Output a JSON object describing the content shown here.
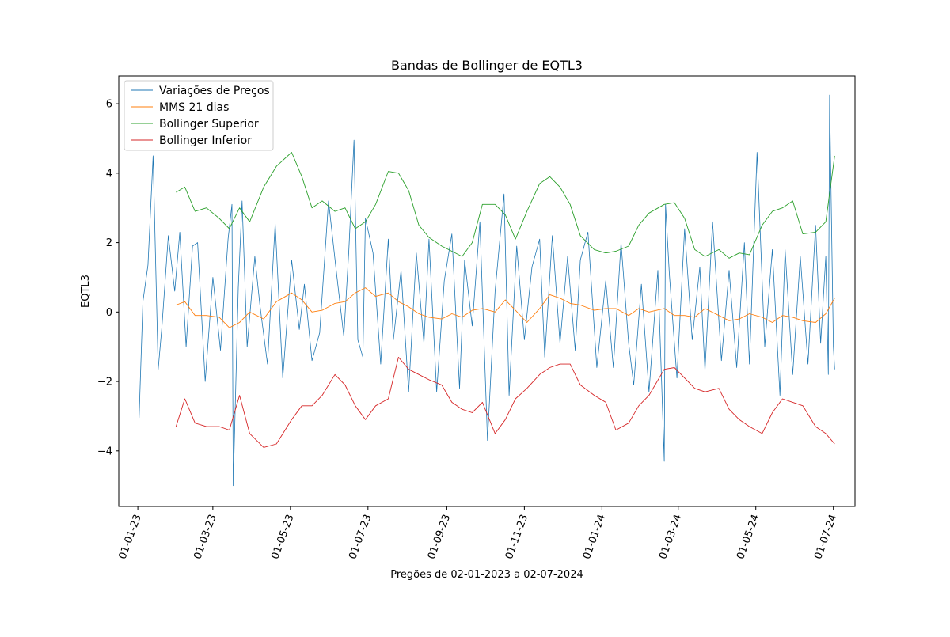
{
  "chart_data": {
    "type": "line",
    "title": "Bandas de Bollinger de EQTL3",
    "xlabel": "Pregões de 02-01-2023 a 02-07-2024",
    "ylabel": "EQTL3",
    "ylim": [
      -5.6,
      6.8
    ],
    "xlim": [
      "2022-12-17",
      "2024-07-18"
    ],
    "grid": false,
    "legend_position": "upper-left",
    "yticks": [
      -4,
      -2,
      0,
      2,
      4,
      6
    ],
    "ytick_labels": [
      "−4",
      "−2",
      "0",
      "2",
      "4",
      "6"
    ],
    "xticks": [
      "2023-01-01",
      "2023-03-01",
      "2023-05-01",
      "2023-07-01",
      "2023-09-01",
      "2023-11-01",
      "2024-01-01",
      "2024-03-01",
      "2024-05-01",
      "2024-07-01"
    ],
    "xtick_labels": [
      "01-01-23",
      "01-03-23",
      "01-05-23",
      "01-07-23",
      "01-09-23",
      "01-11-23",
      "01-01-24",
      "01-03-24",
      "01-05-24",
      "01-07-24"
    ],
    "series": [
      {
        "name": "Variações de Preços",
        "color": "#1f77b4",
        "x": [
          "2023-01-02",
          "2023-01-05",
          "2023-01-09",
          "2023-01-13",
          "2023-01-17",
          "2023-01-20",
          "2023-01-25",
          "2023-01-30",
          "2023-02-03",
          "2023-02-08",
          "2023-02-13",
          "2023-02-17",
          "2023-02-23",
          "2023-03-01",
          "2023-03-07",
          "2023-03-13",
          "2023-03-16",
          "2023-03-17",
          "2023-03-21",
          "2023-03-24",
          "2023-03-28",
          "2023-04-03",
          "2023-04-07",
          "2023-04-13",
          "2023-04-19",
          "2023-04-25",
          "2023-05-02",
          "2023-05-08",
          "2023-05-12",
          "2023-05-18",
          "2023-05-24",
          "2023-05-31",
          "2023-06-06",
          "2023-06-12",
          "2023-06-16",
          "2023-06-20",
          "2023-06-23",
          "2023-06-27",
          "2023-06-29",
          "2023-07-05",
          "2023-07-11",
          "2023-07-17",
          "2023-07-21",
          "2023-07-27",
          "2023-08-02",
          "2023-08-08",
          "2023-08-14",
          "2023-08-18",
          "2023-08-24",
          "2023-08-30",
          "2023-09-05",
          "2023-09-11",
          "2023-09-15",
          "2023-09-21",
          "2023-09-27",
          "2023-10-03",
          "2023-10-09",
          "2023-10-16",
          "2023-10-20",
          "2023-10-26",
          "2023-11-01",
          "2023-11-07",
          "2023-11-13",
          "2023-11-17",
          "2023-11-23",
          "2023-11-29",
          "2023-12-05",
          "2023-12-11",
          "2023-12-15",
          "2023-12-21",
          "2023-12-28",
          "2024-01-04",
          "2024-01-10",
          "2024-01-16",
          "2024-01-22",
          "2024-01-26",
          "2024-02-01",
          "2024-02-07",
          "2024-02-14",
          "2024-02-19",
          "2024-02-20",
          "2024-02-23",
          "2024-02-29",
          "2024-03-06",
          "2024-03-12",
          "2024-03-18",
          "2024-03-22",
          "2024-03-28",
          "2024-04-04",
          "2024-04-10",
          "2024-04-16",
          "2024-04-22",
          "2024-04-26",
          "2024-05-02",
          "2024-05-08",
          "2024-05-14",
          "2024-05-20",
          "2024-05-24",
          "2024-05-30",
          "2024-06-05",
          "2024-06-11",
          "2024-06-17",
          "2024-06-21",
          "2024-06-25",
          "2024-06-27",
          "2024-06-28",
          "2024-07-01",
          "2024-07-02"
        ],
        "values": [
          -3.05,
          0.3,
          1.35,
          4.5,
          -1.65,
          -0.4,
          2.2,
          0.6,
          2.3,
          -1.0,
          1.9,
          2.0,
          -2.0,
          1.0,
          -1.1,
          2.1,
          3.1,
          -5.0,
          0.7,
          3.2,
          -1.0,
          1.6,
          0.2,
          -1.5,
          2.55,
          -1.9,
          1.5,
          -0.5,
          0.8,
          -1.4,
          -0.6,
          3.2,
          1.2,
          -0.7,
          1.8,
          4.95,
          -0.8,
          -1.3,
          2.7,
          1.7,
          -1.5,
          2.1,
          -0.8,
          1.2,
          -2.3,
          1.7,
          -0.9,
          2.1,
          -2.3,
          0.9,
          2.25,
          -2.2,
          1.5,
          -0.4,
          2.6,
          -3.7,
          0.6,
          3.4,
          -2.4,
          1.9,
          -0.8,
          1.3,
          2.1,
          -1.3,
          2.2,
          -0.9,
          1.6,
          -1.1,
          1.5,
          2.3,
          -1.6,
          0.9,
          -1.6,
          2.0,
          -0.9,
          -2.1,
          0.8,
          -2.3,
          1.2,
          -4.3,
          3.1,
          1.1,
          -1.9,
          2.4,
          -0.8,
          1.3,
          -1.7,
          2.6,
          -1.4,
          1.2,
          -1.6,
          2.0,
          -1.5,
          4.6,
          -1.0,
          1.8,
          -2.4,
          1.8,
          -1.8,
          1.6,
          -1.5,
          2.5,
          -0.9,
          1.6,
          -1.8,
          6.25,
          -1.0,
          -1.65
        ]
      },
      {
        "name": "MMS 21 dias",
        "color": "#ff7f0e",
        "x": [
          "2023-01-31",
          "2023-02-07",
          "2023-02-15",
          "2023-02-24",
          "2023-03-06",
          "2023-03-14",
          "2023-03-22",
          "2023-03-30",
          "2023-04-10",
          "2023-04-20",
          "2023-05-02",
          "2023-05-10",
          "2023-05-18",
          "2023-05-26",
          "2023-06-05",
          "2023-06-13",
          "2023-06-21",
          "2023-06-29",
          "2023-07-07",
          "2023-07-17",
          "2023-07-25",
          "2023-08-02",
          "2023-08-10",
          "2023-08-18",
          "2023-08-28",
          "2023-09-05",
          "2023-09-13",
          "2023-09-21",
          "2023-09-29",
          "2023-10-09",
          "2023-10-17",
          "2023-10-25",
          "2023-11-03",
          "2023-11-13",
          "2023-11-21",
          "2023-11-29",
          "2023-12-07",
          "2023-12-15",
          "2023-12-26",
          "2024-01-04",
          "2024-01-12",
          "2024-01-22",
          "2024-01-30",
          "2024-02-07",
          "2024-02-19",
          "2024-02-27",
          "2024-03-06",
          "2024-03-14",
          "2024-03-22",
          "2024-04-02",
          "2024-04-10",
          "2024-04-18",
          "2024-04-26",
          "2024-05-06",
          "2024-05-14",
          "2024-05-22",
          "2024-05-30",
          "2024-06-07",
          "2024-06-17",
          "2024-06-25",
          "2024-07-02"
        ],
        "values": [
          0.2,
          0.3,
          -0.1,
          -0.1,
          -0.15,
          -0.45,
          -0.3,
          0.0,
          -0.2,
          0.3,
          0.55,
          0.35,
          0.0,
          0.05,
          0.25,
          0.3,
          0.55,
          0.7,
          0.45,
          0.55,
          0.3,
          0.15,
          -0.05,
          -0.15,
          -0.2,
          -0.05,
          -0.15,
          0.05,
          0.1,
          0.0,
          0.35,
          0.05,
          -0.3,
          0.1,
          0.5,
          0.4,
          0.25,
          0.2,
          0.05,
          0.1,
          0.1,
          -0.1,
          0.1,
          0.0,
          0.1,
          -0.1,
          -0.1,
          -0.15,
          0.1,
          -0.1,
          -0.25,
          -0.2,
          -0.05,
          -0.15,
          -0.3,
          -0.1,
          -0.15,
          -0.25,
          -0.3,
          -0.05,
          0.4
        ]
      },
      {
        "name": "Bollinger Superior",
        "color": "#2ca02c",
        "x": [
          "2023-01-31",
          "2023-02-07",
          "2023-02-15",
          "2023-02-24",
          "2023-03-06",
          "2023-03-14",
          "2023-03-22",
          "2023-03-30",
          "2023-04-10",
          "2023-04-20",
          "2023-05-02",
          "2023-05-10",
          "2023-05-18",
          "2023-05-26",
          "2023-06-05",
          "2023-06-13",
          "2023-06-21",
          "2023-06-29",
          "2023-07-07",
          "2023-07-17",
          "2023-07-25",
          "2023-08-02",
          "2023-08-10",
          "2023-08-18",
          "2023-08-28",
          "2023-09-05",
          "2023-09-13",
          "2023-09-21",
          "2023-09-29",
          "2023-10-09",
          "2023-10-17",
          "2023-10-25",
          "2023-11-03",
          "2023-11-13",
          "2023-11-21",
          "2023-11-29",
          "2023-12-07",
          "2023-12-15",
          "2023-12-26",
          "2024-01-04",
          "2024-01-12",
          "2024-01-22",
          "2024-01-30",
          "2024-02-07",
          "2024-02-19",
          "2024-02-27",
          "2024-03-06",
          "2024-03-14",
          "2024-03-22",
          "2024-04-02",
          "2024-04-10",
          "2024-04-18",
          "2024-04-26",
          "2024-05-06",
          "2024-05-14",
          "2024-05-22",
          "2024-05-30",
          "2024-06-07",
          "2024-06-17",
          "2024-06-25",
          "2024-07-02"
        ],
        "values": [
          3.45,
          3.6,
          2.9,
          3.0,
          2.7,
          2.4,
          3.0,
          2.6,
          3.6,
          4.2,
          4.6,
          3.9,
          3.0,
          3.2,
          2.9,
          3.0,
          2.4,
          2.6,
          3.1,
          4.05,
          4.0,
          3.5,
          2.5,
          2.15,
          1.9,
          1.75,
          1.6,
          2.0,
          3.1,
          3.1,
          2.8,
          2.1,
          2.9,
          3.7,
          3.9,
          3.6,
          3.1,
          2.2,
          1.8,
          1.7,
          1.75,
          1.9,
          2.5,
          2.85,
          3.1,
          3.15,
          2.7,
          1.8,
          1.6,
          1.8,
          1.55,
          1.7,
          1.65,
          2.5,
          2.9,
          3.0,
          3.2,
          2.25,
          2.3,
          2.6,
          4.5
        ]
      },
      {
        "name": "Bollinger Inferior",
        "color": "#d62728",
        "x": [
          "2023-01-31",
          "2023-02-07",
          "2023-02-15",
          "2023-02-24",
          "2023-03-06",
          "2023-03-14",
          "2023-03-22",
          "2023-03-30",
          "2023-04-10",
          "2023-04-20",
          "2023-05-02",
          "2023-05-10",
          "2023-05-18",
          "2023-05-26",
          "2023-06-05",
          "2023-06-13",
          "2023-06-21",
          "2023-06-29",
          "2023-07-07",
          "2023-07-17",
          "2023-07-25",
          "2023-08-02",
          "2023-08-10",
          "2023-08-18",
          "2023-08-28",
          "2023-09-05",
          "2023-09-13",
          "2023-09-21",
          "2023-09-29",
          "2023-10-09",
          "2023-10-17",
          "2023-10-25",
          "2023-11-03",
          "2023-11-13",
          "2023-11-21",
          "2023-11-29",
          "2023-12-07",
          "2023-12-15",
          "2023-12-26",
          "2024-01-04",
          "2024-01-12",
          "2024-01-22",
          "2024-01-30",
          "2024-02-07",
          "2024-02-19",
          "2024-02-27",
          "2024-03-06",
          "2024-03-14",
          "2024-03-22",
          "2024-04-02",
          "2024-04-10",
          "2024-04-18",
          "2024-04-26",
          "2024-05-06",
          "2024-05-14",
          "2024-05-22",
          "2024-05-30",
          "2024-06-07",
          "2024-06-17",
          "2024-06-25",
          "2024-07-02"
        ],
        "values": [
          -3.3,
          -2.5,
          -3.2,
          -3.3,
          -3.3,
          -3.4,
          -2.4,
          -3.5,
          -3.9,
          -3.8,
          -3.1,
          -2.7,
          -2.7,
          -2.4,
          -1.8,
          -2.1,
          -2.7,
          -3.1,
          -2.7,
          -2.5,
          -1.3,
          -1.65,
          -1.8,
          -1.95,
          -2.1,
          -2.6,
          -2.8,
          -2.9,
          -2.6,
          -3.5,
          -3.1,
          -2.5,
          -2.2,
          -1.8,
          -1.6,
          -1.5,
          -1.5,
          -2.1,
          -2.4,
          -2.6,
          -3.4,
          -3.2,
          -2.7,
          -2.4,
          -1.65,
          -1.6,
          -1.9,
          -2.2,
          -2.3,
          -2.2,
          -2.8,
          -3.1,
          -3.3,
          -3.5,
          -2.9,
          -2.5,
          -2.6,
          -2.7,
          -3.3,
          -3.5,
          -3.8
        ]
      }
    ]
  }
}
